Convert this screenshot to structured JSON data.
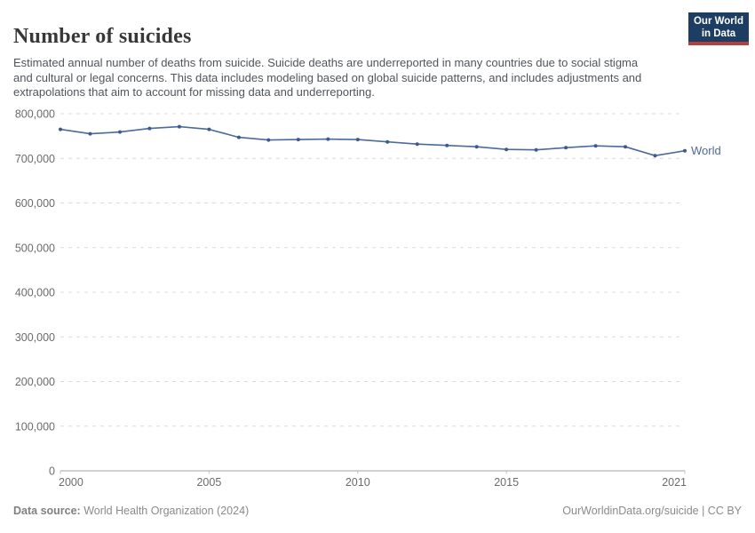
{
  "header": {
    "title": "Number of suicides",
    "subtitle": "Estimated annual number of deaths from suicide. Suicide deaths are underreported in many countries due to social stigma and cultural or legal concerns. This data includes modeling based on global suicide patterns, and includes adjustments and extrapolations that aim to account for missing data and underreporting."
  },
  "logo": {
    "line1": "Our World",
    "line2": "in Data",
    "bg_color": "#1d3d63",
    "bar_color": "#b0413e"
  },
  "chart_data": {
    "type": "line",
    "title": "Number of suicides",
    "x": [
      2000,
      2001,
      2002,
      2003,
      2004,
      2005,
      2006,
      2007,
      2008,
      2009,
      2010,
      2011,
      2012,
      2013,
      2014,
      2015,
      2016,
      2017,
      2018,
      2019,
      2020,
      2021
    ],
    "series": [
      {
        "name": "World",
        "color": "#4c6a9c",
        "marker_color": "#3d5a8f",
        "values": [
          765000,
          755000,
          759000,
          767000,
          771000,
          765000,
          747000,
          741000,
          742000,
          743000,
          742000,
          737000,
          732000,
          729000,
          726000,
          720000,
          719000,
          724000,
          728000,
          726000,
          706000,
          717000
        ]
      }
    ],
    "xlabel": "",
    "ylabel": "",
    "ylim": [
      0,
      800000
    ],
    "yticks": [
      0,
      100000,
      200000,
      300000,
      400000,
      500000,
      600000,
      700000,
      800000
    ],
    "xticks": [
      2000,
      2005,
      2010,
      2015,
      2021
    ],
    "grid": "horizontal-dashed",
    "legend_position": "end-of-line",
    "axis_text_color": "#6b6b6b",
    "gridline_color": "#dcdcdc"
  },
  "footer": {
    "source_label": "Data source:",
    "source_value": "World Health Organization (2024)",
    "link": "OurWorldinData.org/suicide | CC BY"
  }
}
